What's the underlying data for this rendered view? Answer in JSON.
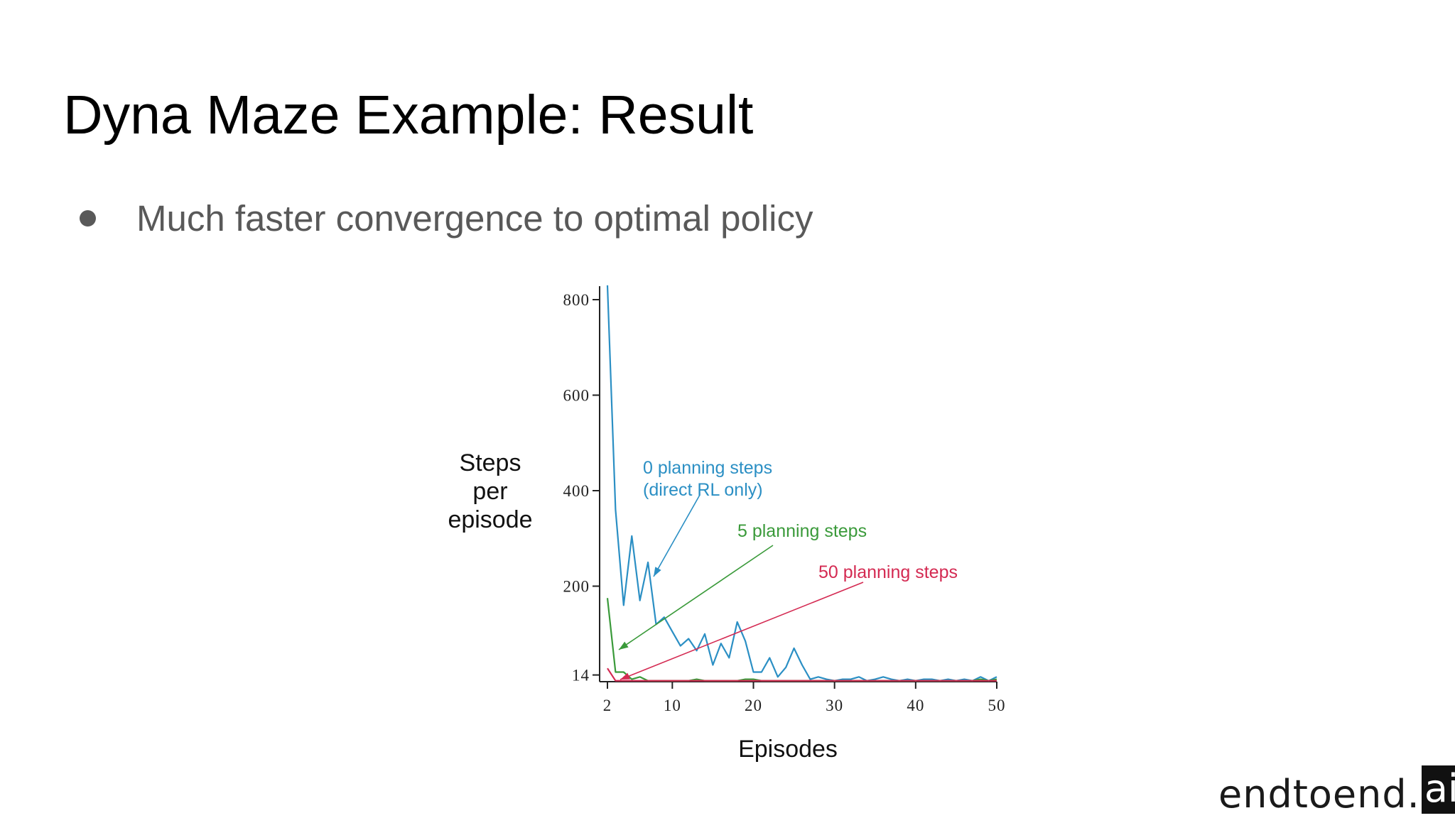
{
  "slide": {
    "title": "Dyna Maze Example: Result",
    "bullet": "Much faster convergence to optimal policy"
  },
  "brand": {
    "text": "endtoend.",
    "box_text": "ai"
  },
  "chart_data": {
    "type": "line",
    "xlabel": "Episodes",
    "ylabel": [
      "Steps",
      "per",
      "episode"
    ],
    "x_ticks": [
      2,
      10,
      20,
      30,
      40,
      50
    ],
    "y_ticks": [
      14,
      200,
      400,
      600,
      800
    ],
    "xlim": [
      1,
      50
    ],
    "ylim": [
      0,
      830
    ],
    "grid": false,
    "series": [
      {
        "name": "0 planning steps (direct RL only)",
        "color": "#2b8fc4",
        "x": [
          2,
          3,
          4,
          5,
          6,
          7,
          8,
          9,
          10,
          11,
          12,
          13,
          14,
          15,
          16,
          17,
          18,
          19,
          20,
          21,
          22,
          23,
          24,
          25,
          26,
          27,
          28,
          29,
          30,
          31,
          32,
          33,
          34,
          35,
          36,
          37,
          38,
          39,
          40,
          41,
          42,
          43,
          44,
          45,
          46,
          47,
          48,
          49,
          50
        ],
        "y": [
          830,
          360,
          160,
          305,
          170,
          250,
          120,
          135,
          105,
          75,
          90,
          65,
          100,
          35,
          80,
          50,
          125,
          85,
          20,
          20,
          50,
          10,
          30,
          70,
          35,
          5,
          10,
          5,
          2,
          5,
          5,
          10,
          2,
          5,
          10,
          5,
          2,
          5,
          2,
          5,
          5,
          2,
          5,
          2,
          5,
          2,
          10,
          2,
          10
        ]
      },
      {
        "name": "5 planning steps",
        "color": "#3a9a3a",
        "x": [
          2,
          3,
          4,
          5,
          6,
          7,
          8,
          9,
          10,
          11,
          12,
          13,
          14,
          15,
          16,
          17,
          18,
          19,
          20,
          21,
          22,
          23,
          24,
          25,
          26,
          27,
          28,
          29,
          30,
          31,
          32,
          33,
          34,
          35,
          36,
          37,
          38,
          39,
          40,
          41,
          42,
          43,
          44,
          45,
          46,
          47,
          48,
          49,
          50
        ],
        "y": [
          175,
          20,
          20,
          5,
          10,
          2,
          2,
          2,
          2,
          2,
          2,
          5,
          2,
          2,
          2,
          2,
          2,
          5,
          5,
          2,
          2,
          2,
          2,
          2,
          2,
          2,
          2,
          2,
          2,
          2,
          2,
          2,
          2,
          2,
          2,
          2,
          2,
          2,
          2,
          2,
          2,
          2,
          2,
          2,
          2,
          2,
          5,
          2,
          5
        ]
      },
      {
        "name": "50 planning steps",
        "color": "#d42a52",
        "x": [
          2,
          3,
          4,
          5,
          6,
          7,
          8,
          9,
          10,
          11,
          12,
          13,
          14,
          15,
          16,
          17,
          18,
          19,
          20,
          21,
          22,
          23,
          24,
          25,
          26,
          27,
          28,
          29,
          30,
          31,
          32,
          33,
          34,
          35,
          36,
          37,
          38,
          39,
          40,
          41,
          42,
          43,
          44,
          45,
          46,
          47,
          48,
          49,
          50
        ],
        "y": [
          28,
          2,
          2,
          2,
          2,
          2,
          2,
          2,
          2,
          2,
          2,
          2,
          2,
          2,
          2,
          2,
          2,
          2,
          2,
          2,
          2,
          2,
          2,
          2,
          2,
          2,
          2,
          2,
          2,
          2,
          2,
          2,
          2,
          2,
          2,
          2,
          2,
          2,
          2,
          2,
          2,
          2,
          2,
          2,
          2,
          2,
          2,
          2,
          2
        ]
      }
    ],
    "annotations": [
      {
        "lines": [
          "0 planning steps",
          "(direct RL only)"
        ],
        "color": "#2b8fc4"
      },
      {
        "lines": [
          "5 planning steps"
        ],
        "color": "#3a9a3a"
      },
      {
        "lines": [
          "50 planning steps"
        ],
        "color": "#d42a52"
      }
    ]
  }
}
